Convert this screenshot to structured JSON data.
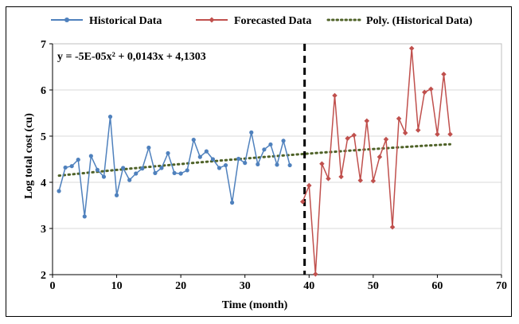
{
  "chart_data": {
    "type": "line",
    "xlabel": "Time (month)",
    "ylabel": "Log total cost (cu)",
    "xlim": [
      0,
      70
    ],
    "ylim": [
      2,
      7
    ],
    "x_ticks": [
      "0",
      "10",
      "20",
      "30",
      "40",
      "50",
      "60",
      "70"
    ],
    "y_ticks": [
      "2",
      "3",
      "4",
      "5",
      "6",
      "7"
    ],
    "grid": "horizontal",
    "legend_position": "top",
    "equation": "y = -5E-05x² + 0,0143x + 4,1303",
    "divider_x": 39.3,
    "series": [
      {
        "name": "Historical Data",
        "color": "#4f81bd",
        "marker": "circle",
        "points": [
          [
            1,
            3.81
          ],
          [
            2,
            4.32
          ],
          [
            3,
            4.35
          ],
          [
            4,
            4.49
          ],
          [
            5,
            3.26
          ],
          [
            6,
            4.57
          ],
          [
            7,
            4.27
          ],
          [
            8,
            4.12
          ],
          [
            9,
            5.42
          ],
          [
            10,
            3.72
          ],
          [
            11,
            4.31
          ],
          [
            12,
            4.05
          ],
          [
            13,
            4.19
          ],
          [
            14,
            4.3
          ],
          [
            15,
            4.75
          ],
          [
            16,
            4.2
          ],
          [
            17,
            4.31
          ],
          [
            18,
            4.63
          ],
          [
            19,
            4.2
          ],
          [
            20,
            4.19
          ],
          [
            21,
            4.26
          ],
          [
            22,
            4.92
          ],
          [
            23,
            4.55
          ],
          [
            24,
            4.67
          ],
          [
            25,
            4.5
          ],
          [
            26,
            4.31
          ],
          [
            27,
            4.37
          ],
          [
            28,
            3.56
          ],
          [
            29,
            4.51
          ],
          [
            30,
            4.42
          ],
          [
            31,
            5.08
          ],
          [
            32,
            4.39
          ],
          [
            33,
            4.71
          ],
          [
            34,
            4.82
          ],
          [
            35,
            4.38
          ],
          [
            36,
            4.9
          ],
          [
            37,
            4.37
          ]
        ]
      },
      {
        "name": "Forecasted Data",
        "color": "#c0504d",
        "marker": "diamond",
        "points": [
          [
            39,
            3.58
          ],
          [
            40,
            3.93
          ],
          [
            41,
            2.01
          ],
          [
            42,
            4.4
          ],
          [
            43,
            4.08
          ],
          [
            44,
            5.88
          ],
          [
            45,
            4.12
          ],
          [
            46,
            4.95
          ],
          [
            47,
            5.02
          ],
          [
            48,
            4.04
          ],
          [
            49,
            5.33
          ],
          [
            50,
            4.03
          ],
          [
            51,
            4.55
          ],
          [
            52,
            4.93
          ],
          [
            53,
            3.03
          ],
          [
            54,
            5.38
          ],
          [
            55,
            5.07
          ],
          [
            56,
            6.9
          ],
          [
            57,
            5.13
          ],
          [
            58,
            5.95
          ],
          [
            59,
            6.02
          ],
          [
            60,
            5.04
          ],
          [
            61,
            6.34
          ],
          [
            62,
            5.04
          ]
        ]
      },
      {
        "name": "Poly. (Historical Data)",
        "color": "#4f6228",
        "style": "dotted",
        "poly": [
          -5e-05,
          0.0143,
          4.1303
        ],
        "x_range": [
          1,
          62
        ]
      }
    ]
  }
}
